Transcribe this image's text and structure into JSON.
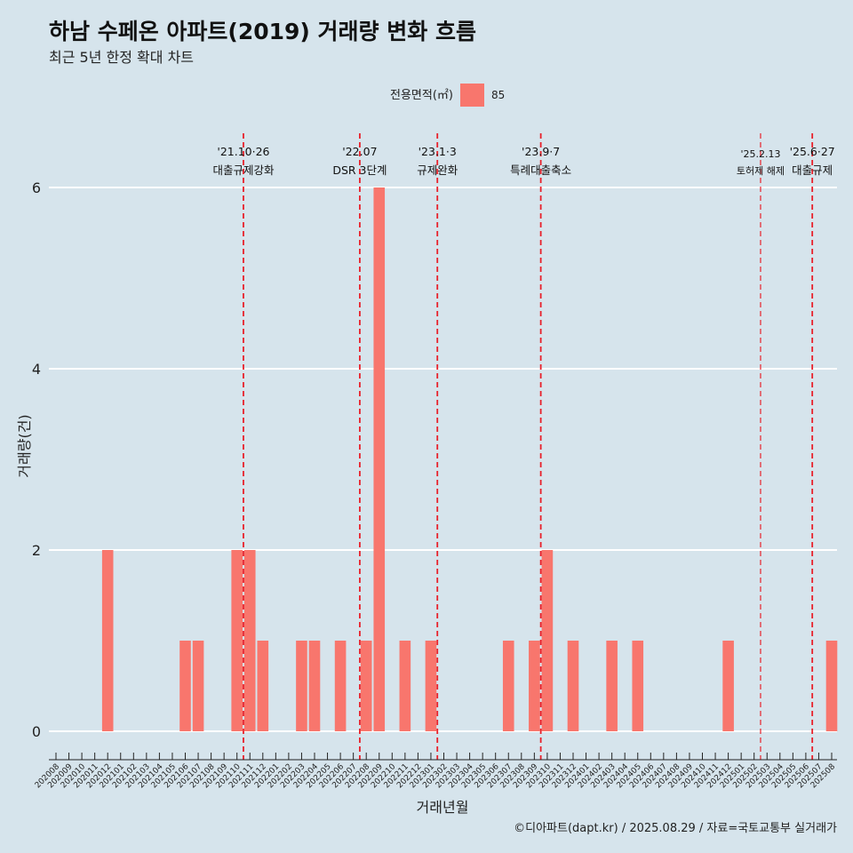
{
  "header": {
    "title": "하남 수페온 아파트(2019) 거래량 변화 흐름",
    "subtitle": "최근 5년 한정 확대 차트"
  },
  "legend": {
    "title": "전용면적(㎡)",
    "items": [
      {
        "label": "85",
        "color": "#f8766d"
      }
    ]
  },
  "caption": "©디아파트(dapt.kr) / 2025.08.29 / 자료=국토교통부 실거래가",
  "chart_data": {
    "type": "bar",
    "xlabel": "거래년월",
    "ylabel": "거래량(건)",
    "ylim": [
      0,
      6
    ],
    "y_ticks": [
      0,
      2,
      4,
      6
    ],
    "grid": "horizontal",
    "legend_position": "top",
    "categories": [
      "202008",
      "202009",
      "202010",
      "202011",
      "202012",
      "202101",
      "202102",
      "202103",
      "202104",
      "202105",
      "202106",
      "202107",
      "202108",
      "202109",
      "202110",
      "202111",
      "202112",
      "202201",
      "202202",
      "202203",
      "202204",
      "202205",
      "202206",
      "202207",
      "202208",
      "202209",
      "202210",
      "202211",
      "202212",
      "202301",
      "202302",
      "202303",
      "202304",
      "202305",
      "202306",
      "202307",
      "202308",
      "202309",
      "202310",
      "202311",
      "202312",
      "202401",
      "202402",
      "202403",
      "202404",
      "202405",
      "202406",
      "202407",
      "202408",
      "202409",
      "202410",
      "202411",
      "202412",
      "202501",
      "202502",
      "202503",
      "202504",
      "202505",
      "202506",
      "202507",
      "202508"
    ],
    "series": [
      {
        "name": "85",
        "color": "#f8766d",
        "values": [
          0,
          0,
          0,
          0,
          2,
          0,
          0,
          0,
          0,
          0,
          1,
          1,
          0,
          0,
          2,
          2,
          1,
          0,
          0,
          1,
          1,
          0,
          1,
          0,
          1,
          6,
          0,
          1,
          0,
          1,
          0,
          0,
          0,
          0,
          0,
          1,
          0,
          1,
          2,
          0,
          1,
          0,
          0,
          1,
          0,
          1,
          0,
          0,
          0,
          0,
          0,
          0,
          1,
          0,
          0,
          0,
          0,
          0,
          0,
          0,
          1
        ]
      }
    ],
    "annotations": [
      {
        "month": "202110",
        "label_top": "'21.10·26",
        "label_bottom": "대출규제강화"
      },
      {
        "month": "202207",
        "label_top": "'22.07",
        "label_bottom": "DSR 3단계"
      },
      {
        "month": "202301",
        "label_top": "'23.1·3",
        "label_bottom": "규제완화"
      },
      {
        "month": "202309",
        "label_top": "'23.9·7",
        "label_bottom": "특례대출축소"
      },
      {
        "month": "202502",
        "label_top": "'25.2.13",
        "label_bottom": "토허제 해제"
      },
      {
        "month": "202506",
        "label_top": "'25.6·27",
        "label_bottom": "대출규제"
      }
    ]
  }
}
